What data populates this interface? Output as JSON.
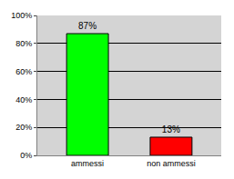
{
  "chart_data": {
    "type": "bar",
    "categories": [
      "ammessi",
      "non ammessi"
    ],
    "values": [
      87,
      13
    ],
    "value_labels": [
      "87%",
      "13%"
    ],
    "colors": [
      "#00ff00",
      "#ff0000"
    ],
    "ylim": [
      0,
      100
    ],
    "yticks": [
      {
        "value": 0,
        "label": "0%"
      },
      {
        "value": 20,
        "label": "20%"
      },
      {
        "value": 40,
        "label": "40%"
      },
      {
        "value": 60,
        "label": "60%"
      },
      {
        "value": 80,
        "label": "80%"
      },
      {
        "value": 100,
        "label": "100%"
      }
    ],
    "grid": true,
    "data_labels": true
  }
}
